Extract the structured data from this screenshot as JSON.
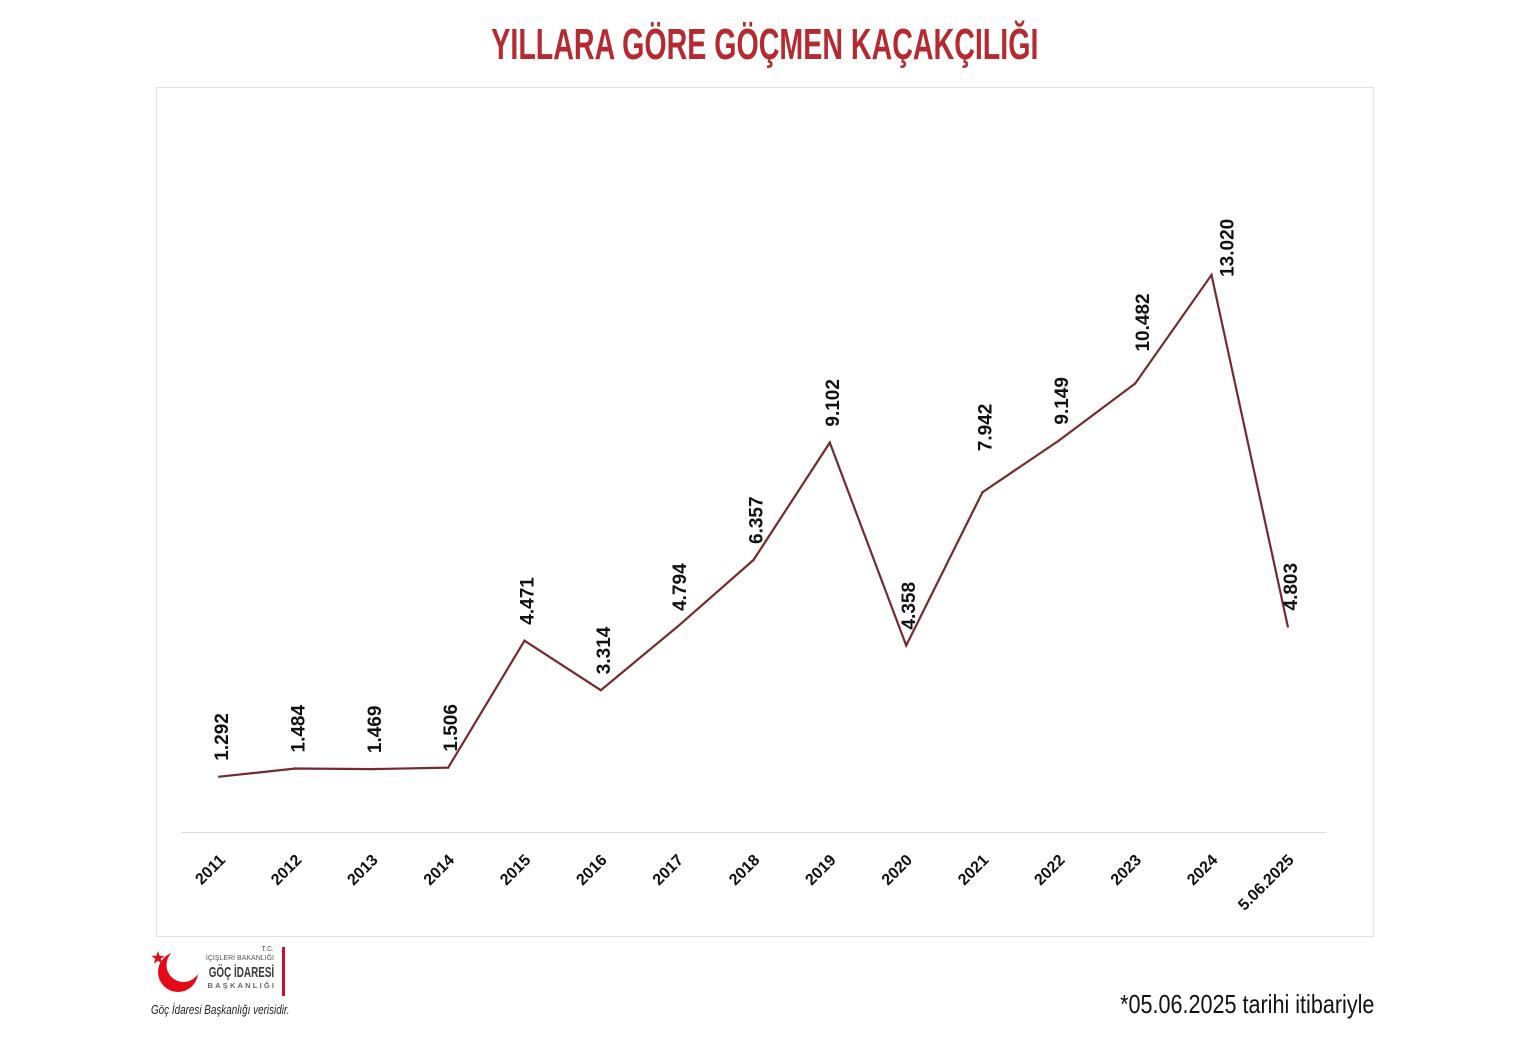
{
  "colors": {
    "title": "#b52a30",
    "series_line": "#722c2f",
    "logo_red": "#e30a17",
    "logo_bar": "#c8102e"
  },
  "chart_data": {
    "type": "line",
    "title": "YILLARA GÖRE GÖÇMEN KAÇAKÇILIĞI",
    "xlabel": "",
    "ylabel": "",
    "categories": [
      "2011",
      "2012",
      "2013",
      "2014",
      "2015",
      "2016",
      "2017",
      "2018",
      "2019",
      "2020",
      "2021",
      "2022",
      "2023",
      "2024",
      "5.06.2025"
    ],
    "values": [
      1292,
      1484,
      1469,
      1506,
      4471,
      3314,
      4794,
      6357,
      9102,
      4358,
      7942,
      9149,
      10482,
      13020,
      4803
    ],
    "data_labels": [
      "1.292",
      "1.484",
      "1.469",
      "1.506",
      "4.471",
      "3.314",
      "4.794",
      "6.357",
      "9.102",
      "4.358",
      "7.942",
      "9.149",
      "10.482",
      "13.020",
      "4.803"
    ],
    "ylim": [
      0,
      14000
    ],
    "grid": false,
    "legend": "none"
  },
  "footnote": "*05.06.2025 tarihi itibariyle",
  "source_note": "Göç İdaresi Başkanlığı verisidir.",
  "logo": {
    "icon": "star-crescent-icon",
    "line_tc": "T.C.",
    "line_ministry": "İÇİŞLERİ BAKANLIĞI",
    "line_agency": "GÖÇ İDARESİ",
    "line_unit": "BAŞKANLIĞI"
  }
}
